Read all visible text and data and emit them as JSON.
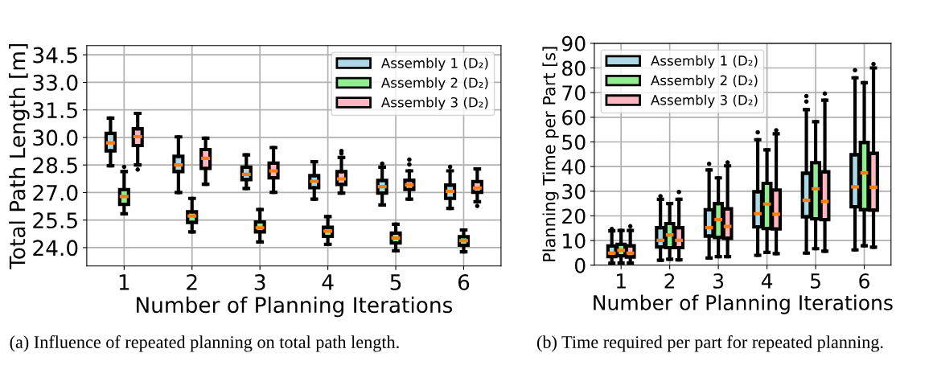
{
  "chart_data": [
    {
      "type": "box",
      "xlabel": "Number of Planning Iterations",
      "ylabel": "Total Path Length [m]",
      "categories": [
        "1",
        "2",
        "3",
        "4",
        "5",
        "6"
      ],
      "ylim": [
        23,
        35
      ],
      "yticks": [
        {
          "value": 24,
          "label": "24.0"
        },
        {
          "value": 25.5,
          "label": "25.5"
        },
        {
          "value": 27,
          "label": "27.0"
        },
        {
          "value": 28.5,
          "label": "28.5"
        },
        {
          "value": 30,
          "label": "30.0"
        },
        {
          "value": 31.5,
          "label": "31.5"
        },
        {
          "value": 33,
          "label": "33.0"
        },
        {
          "value": 34.5,
          "label": "34.5"
        }
      ],
      "grid": true,
      "legend": "top right",
      "annotations": [
        "(a) Influence of repeated planning on total path length."
      ],
      "series": [
        {
          "name": "Assembly 1 (D₂)",
          "color": "#add8e6",
          "boxes": [
            {
              "low": 28.46,
              "q1": 29.27,
              "median": 29.71,
              "q3": 30.22,
              "high": 31.05
            },
            {
              "low": 27.0,
              "q1": 28.14,
              "median": 28.5,
              "q3": 28.97,
              "high": 30.03
            },
            {
              "low": 27.22,
              "q1": 27.7,
              "median": 27.99,
              "q3": 28.38,
              "high": 29.05
            },
            {
              "low": 26.64,
              "q1": 27.26,
              "median": 27.61,
              "q3": 27.92,
              "high": 28.68
            },
            {
              "low": 26.32,
              "q1": 26.97,
              "median": 27.32,
              "q3": 27.66,
              "high": 28.38,
              "outliers": [
                28.57
              ]
            },
            {
              "low": 26.14,
              "q1": 26.68,
              "median": 27.07,
              "q3": 27.41,
              "high": 28.18,
              "outliers": [
                28.4
              ]
            }
          ]
        },
        {
          "name": "Assembly 2 (D₂)",
          "color": "#90ee90",
          "boxes": [
            {
              "low": 25.84,
              "q1": 26.35,
              "median": 26.78,
              "q3": 27.16,
              "high": 28.14,
              "outliers": [
                28.4
              ]
            },
            {
              "low": 24.86,
              "q1": 25.37,
              "median": 25.72,
              "q3": 25.95,
              "high": 26.68
            },
            {
              "low": 24.31,
              "q1": 24.86,
              "median": 25.08,
              "q3": 25.4,
              "high": 26.07
            },
            {
              "low": 24.18,
              "q1": 24.61,
              "median": 24.9,
              "q3": 25.11,
              "high": 25.69
            },
            {
              "low": 23.83,
              "q1": 24.25,
              "median": 24.52,
              "q3": 24.79,
              "high": 25.27
            },
            {
              "low": 23.77,
              "q1": 24.13,
              "median": 24.38,
              "q3": 24.6,
              "high": 24.96
            }
          ]
        },
        {
          "name": "Assembly 3 (D₂)",
          "color": "#ffb6c1",
          "boxes": [
            {
              "low": 28.5,
              "q1": 29.56,
              "median": 30.04,
              "q3": 30.47,
              "high": 31.31,
              "outliers": [
                28.25
              ]
            },
            {
              "low": 27.45,
              "q1": 28.31,
              "median": 28.86,
              "q3": 29.34,
              "high": 29.96
            },
            {
              "low": 27.01,
              "q1": 27.8,
              "median": 28.18,
              "q3": 28.6,
              "high": 29.45
            },
            {
              "low": 26.97,
              "q1": 27.44,
              "median": 27.74,
              "q3": 28.14,
              "high": 28.91,
              "outliers": [
                29.13,
                29.26
              ]
            },
            {
              "low": 26.64,
              "q1": 27.16,
              "median": 27.42,
              "q3": 27.67,
              "high": 28.18,
              "outliers": [
                28.53,
                28.79
              ]
            },
            {
              "low": 26.5,
              "q1": 27.01,
              "median": 27.25,
              "q3": 27.6,
              "high": 28.28,
              "outliers": [
                26.27
              ]
            }
          ]
        }
      ]
    },
    {
      "type": "box",
      "xlabel": "Number of Planning Iterations",
      "ylabel": "Planning Time per Part [s]",
      "categories": [
        "1",
        "2",
        "3",
        "4",
        "5",
        "6"
      ],
      "ylim": [
        0,
        90
      ],
      "yticks": [
        0,
        10,
        20,
        30,
        40,
        50,
        60,
        70,
        80,
        90
      ],
      "grid": true,
      "legend": "top left",
      "annotations": [
        "(b) Time required per part for repeated planning."
      ],
      "series": [
        {
          "name": "Assembly 1 (D₂)",
          "color": "#add8e6",
          "boxes": [
            {
              "low": 0.8,
              "q1": 3.5,
              "median": 4.9,
              "q3": 7.8,
              "high": 13.9,
              "outliers": [
                14.7
              ]
            },
            {
              "low": 2.0,
              "q1": 7.4,
              "median": 10.1,
              "q3": 15.2,
              "high": 26.7,
              "outliers": [
                28.0
              ]
            },
            {
              "low": 2.9,
              "q1": 11.8,
              "median": 15.2,
              "q3": 22.5,
              "high": 38.6,
              "outliers": [
                41.1
              ]
            },
            {
              "low": 4.0,
              "q1": 15.5,
              "median": 20.9,
              "q3": 29.8,
              "high": 50.9,
              "outliers": [
                53.9
              ]
            },
            {
              "low": 4.9,
              "q1": 19.6,
              "median": 26.3,
              "q3": 37.3,
              "high": 63.1,
              "outliers": [
                66.4,
                68.6
              ]
            },
            {
              "low": 6.2,
              "q1": 23.7,
              "median": 31.8,
              "q3": 44.8,
              "high": 76.0,
              "outliers": [
                79.1
              ]
            }
          ]
        },
        {
          "name": "Assembly 2 (D₂)",
          "color": "#90ee90",
          "boxes": [
            {
              "low": 0.9,
              "q1": 3.8,
              "median": 6.0,
              "q3": 8.5,
              "high": 14.1
            },
            {
              "low": 2.4,
              "q1": 7.1,
              "median": 12.3,
              "q3": 16.9,
              "high": 25.0
            },
            {
              "low": 3.5,
              "q1": 11.2,
              "median": 18.5,
              "q3": 25.0,
              "high": 35.4
            },
            {
              "low": 5.2,
              "q1": 14.9,
              "median": 24.8,
              "q3": 33.2,
              "high": 46.8
            },
            {
              "low": 6.7,
              "q1": 18.8,
              "median": 31.0,
              "q3": 41.6,
              "high": 58.2
            },
            {
              "low": 7.9,
              "q1": 22.5,
              "median": 37.5,
              "q3": 49.8,
              "high": 74.0
            }
          ]
        },
        {
          "name": "Assembly 3 (D₂)",
          "color": "#ffb6c1",
          "boxes": [
            {
              "low": 0.9,
              "q1": 3.3,
              "median": 4.9,
              "q3": 7.9,
              "high": 14.1,
              "outliers": [
                15.8
              ]
            },
            {
              "low": 2.2,
              "q1": 7.1,
              "median": 10.1,
              "q3": 15.2,
              "high": 26.7,
              "outliers": [
                29.7
              ]
            },
            {
              "low": 3.5,
              "q1": 10.9,
              "median": 15.7,
              "q3": 22.9,
              "high": 40.3,
              "outliers": [
                41.7
              ]
            },
            {
              "low": 4.7,
              "q1": 14.7,
              "median": 20.7,
              "q3": 30.5,
              "high": 53.3,
              "outliers": [
                54.7
              ]
            },
            {
              "low": 5.7,
              "q1": 18.5,
              "median": 25.8,
              "q3": 37.9,
              "high": 66.9,
              "outliers": [
                69.6
              ]
            },
            {
              "low": 7.3,
              "q1": 22.3,
              "median": 31.6,
              "q3": 45.4,
              "high": 80.0,
              "outliers": [
                81.6
              ]
            }
          ]
        }
      ]
    }
  ]
}
